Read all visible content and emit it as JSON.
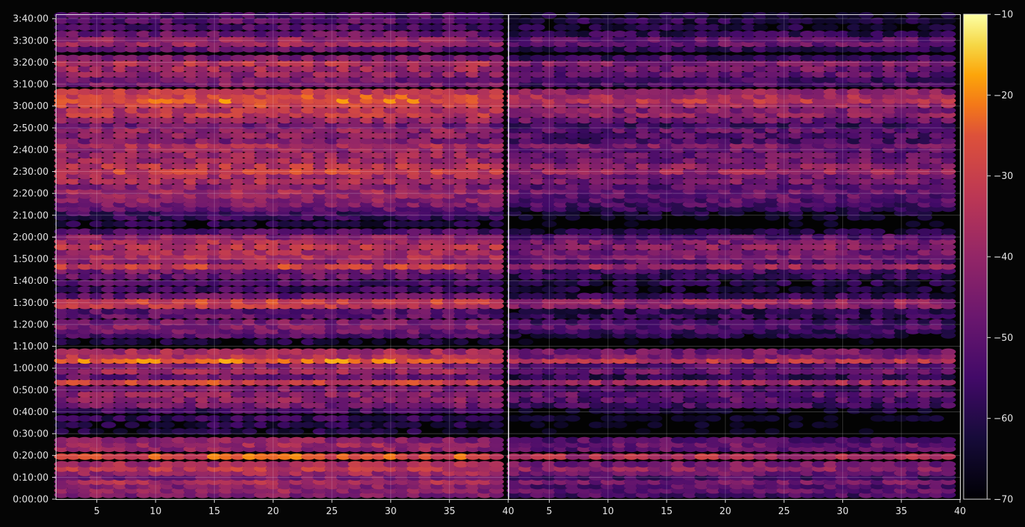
{
  "chart_data": {
    "type": "heatmap",
    "title": "",
    "xlabel": "",
    "ylabel": "",
    "colormap": "inferno",
    "background": "#050505",
    "grid": true,
    "panels": [
      {
        "name": "",
        "x_range": [
          1.5,
          40
        ],
        "x_ticks": [
          "5",
          "10",
          "15",
          "20",
          "25",
          "30",
          "35",
          "40"
        ],
        "x_tick_values": [
          5,
          10,
          15,
          20,
          25,
          30,
          35,
          40
        ],
        "intensity_offset_db": 0
      },
      {
        "name": "",
        "x_range": [
          1.5,
          40
        ],
        "x_ticks": [
          "5",
          "10",
          "15",
          "20",
          "25",
          "30",
          "35",
          "40"
        ],
        "x_tick_values": [
          5,
          10,
          15,
          20,
          25,
          30,
          35,
          40
        ],
        "intensity_offset_db": -9
      }
    ],
    "y_range_minutes": [
      0,
      222
    ],
    "y_ticks": [
      "0:00:00",
      "0:10:00",
      "0:20:00",
      "0:30:00",
      "0:40:00",
      "0:50:00",
      "1:00:00",
      "1:10:00",
      "1:20:00",
      "1:30:00",
      "1:40:00",
      "1:50:00",
      "2:00:00",
      "2:10:00",
      "2:20:00",
      "2:30:00",
      "2:40:00",
      "2:50:00",
      "3:00:00",
      "3:10:00",
      "3:20:00",
      "3:30:00",
      "3:40:00"
    ],
    "y_tick_values_minutes": [
      0,
      10,
      20,
      30,
      40,
      50,
      60,
      70,
      80,
      90,
      100,
      110,
      120,
      130,
      140,
      150,
      160,
      170,
      180,
      190,
      200,
      210,
      220
    ],
    "colorbar": {
      "min": -70,
      "max": -10,
      "ticks": [
        "−10",
        "−20",
        "−30",
        "−40",
        "−50",
        "−60",
        "−70"
      ],
      "tick_values": [
        -10,
        -20,
        -30,
        -40,
        -50,
        -60,
        -70
      ]
    },
    "row_levels_db": [
      {
        "t": 2,
        "db": -44
      },
      {
        "t": 4,
        "db": -40
      },
      {
        "t": 6,
        "db": -42
      },
      {
        "t": 8,
        "db": -36
      },
      {
        "t": 10,
        "db": -45
      },
      {
        "t": 12,
        "db": -38
      },
      {
        "t": 14,
        "db": -32
      },
      {
        "t": 16,
        "db": -36
      },
      {
        "t": 19.5,
        "db": -26
      },
      {
        "t": 23,
        "db": -40
      },
      {
        "t": 25,
        "db": -38
      },
      {
        "t": 27,
        "db": -42
      },
      {
        "t": 31,
        "db": -62
      },
      {
        "t": 34,
        "db": -60
      },
      {
        "t": 37,
        "db": -57
      },
      {
        "t": 40.5,
        "db": -55
      },
      {
        "t": 43,
        "db": -45
      },
      {
        "t": 45.5,
        "db": -42
      },
      {
        "t": 48,
        "db": -40
      },
      {
        "t": 50.5,
        "db": -45
      },
      {
        "t": 53.5,
        "db": -28
      },
      {
        "t": 56,
        "db": -48
      },
      {
        "t": 58.5,
        "db": -38
      },
      {
        "t": 61,
        "db": -42
      },
      {
        "t": 63.5,
        "db": -23
      },
      {
        "t": 65.5,
        "db": -34
      },
      {
        "t": 67.5,
        "db": -37
      },
      {
        "t": 72,
        "db": -62
      },
      {
        "t": 75,
        "db": -52
      },
      {
        "t": 77,
        "db": -47
      },
      {
        "t": 79,
        "db": -42
      },
      {
        "t": 81,
        "db": -45
      },
      {
        "t": 84,
        "db": -48
      },
      {
        "t": 86,
        "db": -50
      },
      {
        "t": 88.5,
        "db": -33
      },
      {
        "t": 90.5,
        "db": -30
      },
      {
        "t": 93,
        "db": -48
      },
      {
        "t": 96,
        "db": -54
      },
      {
        "t": 99,
        "db": -52
      },
      {
        "t": 102,
        "db": -48
      },
      {
        "t": 104.5,
        "db": -45
      },
      {
        "t": 106.5,
        "db": -30
      },
      {
        "t": 109,
        "db": -41
      },
      {
        "t": 111,
        "db": -35
      },
      {
        "t": 113,
        "db": -37
      },
      {
        "t": 115.5,
        "db": -33
      },
      {
        "t": 118,
        "db": -35
      },
      {
        "t": 120,
        "db": -42
      },
      {
        "t": 122.5,
        "db": -52
      },
      {
        "t": 126,
        "db": -60
      },
      {
        "t": 129,
        "db": -57
      },
      {
        "t": 131,
        "db": -55
      },
      {
        "t": 133,
        "db": -48
      },
      {
        "t": 135,
        "db": -44
      },
      {
        "t": 137,
        "db": -42
      },
      {
        "t": 139,
        "db": -40
      },
      {
        "t": 141,
        "db": -38
      },
      {
        "t": 143,
        "db": -42
      },
      {
        "t": 145.5,
        "db": -36
      },
      {
        "t": 148,
        "db": -36
      },
      {
        "t": 150,
        "db": -30
      },
      {
        "t": 152.5,
        "db": -33
      },
      {
        "t": 155,
        "db": -38
      },
      {
        "t": 157.5,
        "db": -39
      },
      {
        "t": 160,
        "db": -40
      },
      {
        "t": 162,
        "db": -35
      },
      {
        "t": 164,
        "db": -44
      },
      {
        "t": 166.5,
        "db": -42
      },
      {
        "t": 169,
        "db": -40
      },
      {
        "t": 171,
        "db": -46
      },
      {
        "t": 173.5,
        "db": -38
      },
      {
        "t": 176,
        "db": -32
      },
      {
        "t": 178,
        "db": -34
      },
      {
        "t": 180.5,
        "db": -30
      },
      {
        "t": 182.5,
        "db": -24
      },
      {
        "t": 184.5,
        "db": -27
      },
      {
        "t": 186.5,
        "db": -32
      },
      {
        "t": 190,
        "db": -44
      },
      {
        "t": 192,
        "db": -46
      },
      {
        "t": 194.5,
        "db": -40
      },
      {
        "t": 197,
        "db": -37
      },
      {
        "t": 199.5,
        "db": -34
      },
      {
        "t": 202,
        "db": -45
      },
      {
        "t": 206,
        "db": -48
      },
      {
        "t": 208.5,
        "db": -38
      },
      {
        "t": 210.5,
        "db": -40
      },
      {
        "t": 213,
        "db": -48
      },
      {
        "t": 216,
        "db": -52
      },
      {
        "t": 219,
        "db": -50
      },
      {
        "t": 221.5,
        "db": -54
      }
    ]
  }
}
